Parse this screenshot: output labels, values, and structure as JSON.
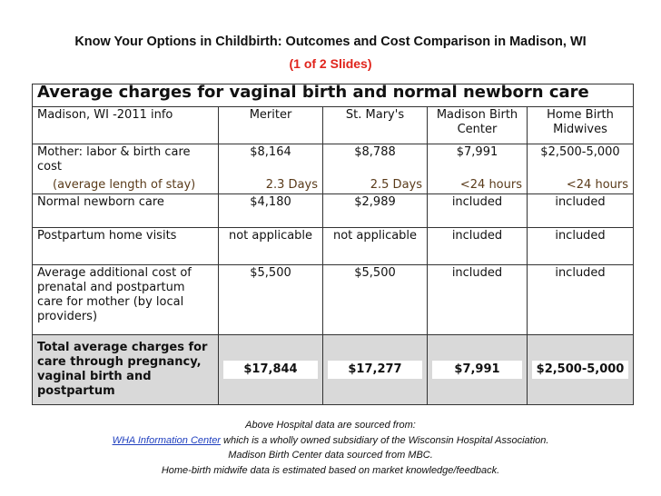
{
  "header": {
    "title": "Know Your Options in Childbirth:  Outcomes and Cost Comparison in Madison, WI",
    "subtitle": "(1 of 2 Slides)"
  },
  "table": {
    "title": "Average charges for vaginal birth and normal newborn care",
    "columns": [
      "Madison, WI -2011 info",
      "Meriter",
      "St. Mary's",
      "Madison Birth Center",
      "Home Birth Midwives"
    ],
    "rows": [
      [
        "Mother: labor & birth care cost",
        "$8,164",
        "$8,788",
        "$7,991",
        "$2,500-5,000"
      ],
      [
        "(average length of stay)",
        "2.3 Days",
        "2.5 Days",
        "<24 hours",
        "<24 hours"
      ],
      [
        "Normal newborn care",
        "$4,180",
        "$2,989",
        "included",
        "included"
      ],
      [
        "Postpartum home visits",
        "not applicable",
        "not applicable",
        "included",
        "included"
      ],
      [
        "Average additional cost of prenatal and postpartum care for mother (by local providers)",
        "$5,500",
        "$5,500",
        "included",
        "included"
      ],
      [
        "Total average charges for care through pregnancy, vaginal birth and postpartum",
        "$17,844",
        "$17,277",
        "$7,991",
        "$2,500-5,000"
      ]
    ]
  },
  "footer": {
    "line1": "Above Hospital data are sourced from:",
    "link": "WHA Information Center",
    "line2": "which is a wholly owned subsidiary of the Wisconsin Hospital Association.",
    "line3": "Madison Birth Center data sourced from MBC.",
    "line4": "Home-birth midwife data is estimated based on market knowledge/feedback."
  }
}
